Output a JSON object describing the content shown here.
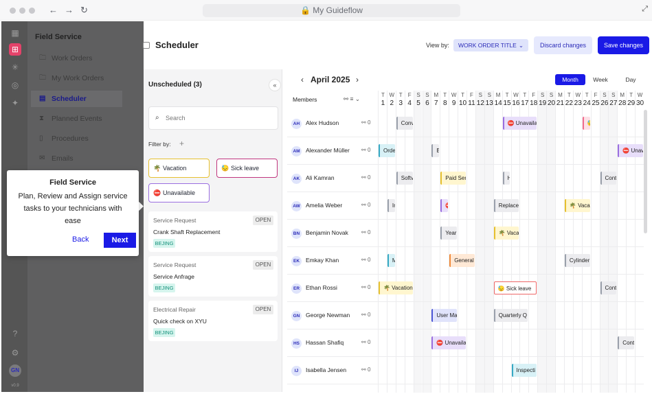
{
  "browser": {
    "url": "My Guideflow"
  },
  "rail": {
    "user": "GN",
    "version": "v0.9"
  },
  "sidebar": {
    "title": "Field Service",
    "items": [
      {
        "label": "Work Orders",
        "icon": "folder-icon"
      },
      {
        "label": "My Work Orders",
        "icon": "folder-user-icon"
      },
      {
        "label": "Scheduler",
        "icon": "calendar-icon"
      },
      {
        "label": "Planned Events",
        "icon": "hourglass-icon"
      },
      {
        "label": "Procedures",
        "icon": "document-icon"
      },
      {
        "label": "Emails",
        "icon": "mail-icon"
      }
    ]
  },
  "header": {
    "title": "Scheduler",
    "view_by_label": "View by:",
    "view_by_value": "WORK ORDER TITLE",
    "discard_label": "Discard changes",
    "save_label": "Save changes"
  },
  "unscheduled": {
    "title": "Unscheduled (3)",
    "search_placeholder": "Search",
    "filter_label": "Filter by:",
    "chips": [
      "Vacation",
      "Sick leave",
      "Unavailable"
    ],
    "cards": [
      {
        "type": "Service Request",
        "name": "Crank Shaft Replacement",
        "tag": "BEJING",
        "status": "OPEN"
      },
      {
        "type": "Service Request",
        "name": "Service Anfrage",
        "tag": "BEJING",
        "status": "OPEN"
      },
      {
        "type": "Electrical Repair",
        "name": "Quick check on XYU",
        "tag": "BEJING",
        "status": "OPEN"
      }
    ]
  },
  "calendar": {
    "month": "April 2025",
    "views": [
      "Month",
      "Week",
      "Day"
    ],
    "members_label": "Members",
    "day_letters": [
      "T",
      "W",
      "T",
      "F",
      "S",
      "S",
      "M",
      "T",
      "W",
      "T",
      "F",
      "S",
      "S",
      "M",
      "T",
      "W",
      "T",
      "F",
      "S",
      "S",
      "M",
      "T",
      "W",
      "T",
      "F",
      "S",
      "S",
      "M",
      "T",
      "W"
    ],
    "day_numbers": [
      "1",
      "2",
      "3",
      "4",
      "5",
      "6",
      "7",
      "8",
      "9",
      "10",
      "11",
      "12",
      "13",
      "14",
      "15",
      "16",
      "17",
      "18",
      "19",
      "20",
      "21",
      "22",
      "23",
      "24",
      "25",
      "26",
      "27",
      "28",
      "29",
      "30"
    ],
    "members": [
      {
        "initials": "AH",
        "name": "Alex Hudson",
        "count": "0"
      },
      {
        "initials": "AM",
        "name": "Alexander Müller",
        "count": "0"
      },
      {
        "initials": "AK",
        "name": "Ali Kamran",
        "count": "0"
      },
      {
        "initials": "AW",
        "name": "Amelia Weber",
        "count": "0"
      },
      {
        "initials": "BN",
        "name": "Benjamin Novak",
        "count": "0"
      },
      {
        "initials": "EK",
        "name": "Emkay Khan",
        "count": "0"
      },
      {
        "initials": "ER",
        "name": "Ethan Rossi",
        "count": "0"
      },
      {
        "initials": "GN",
        "name": "George Newman",
        "count": "0"
      },
      {
        "initials": "HS",
        "name": "Hassan Shafiq",
        "count": "0"
      },
      {
        "initials": "IJ",
        "name": "Isabella Jensen",
        "count": "0"
      }
    ],
    "events": [
      {
        "row": 0,
        "start": 2,
        "span": 2,
        "label": "Conv",
        "color": "gray"
      },
      {
        "row": 0,
        "start": 14,
        "span": 4,
        "label": "⛔ Unavailab",
        "color": "purple"
      },
      {
        "row": 0,
        "start": 23,
        "span": 1,
        "label": "😓",
        "color": "pink"
      },
      {
        "row": 1,
        "start": 0,
        "span": 2,
        "label": "Orde",
        "color": "blue"
      },
      {
        "row": 1,
        "start": 6,
        "span": 1,
        "label": "B",
        "color": "gray"
      },
      {
        "row": 1,
        "start": 27,
        "span": 3,
        "label": "⛔ Unava",
        "color": "purple"
      },
      {
        "row": 2,
        "start": 2,
        "span": 2,
        "label": "Softv",
        "color": "gray"
      },
      {
        "row": 2,
        "start": 7,
        "span": 3,
        "label": "Paid Ser",
        "color": "yellow"
      },
      {
        "row": 2,
        "start": 14,
        "span": 1,
        "label": "H",
        "color": "gray"
      },
      {
        "row": 2,
        "start": 25,
        "span": 2,
        "label": "Cont",
        "color": "gray"
      },
      {
        "row": 3,
        "start": 1,
        "span": 1,
        "label": "Ir",
        "color": "gray"
      },
      {
        "row": 3,
        "start": 7,
        "span": 1,
        "label": "⛔",
        "color": "purple"
      },
      {
        "row": 3,
        "start": 13,
        "span": 3,
        "label": "Replace",
        "color": "gray"
      },
      {
        "row": 3,
        "start": 21,
        "span": 3,
        "label": "🌴 Vacat",
        "color": "yellow"
      },
      {
        "row": 4,
        "start": 7,
        "span": 2,
        "label": "Yearl",
        "color": "gray"
      },
      {
        "row": 4,
        "start": 13,
        "span": 3,
        "label": "🌴 Vacat",
        "color": "yellow"
      },
      {
        "row": 5,
        "start": 1,
        "span": 1,
        "label": "M",
        "color": "blue"
      },
      {
        "row": 5,
        "start": 8,
        "span": 3,
        "label": "General",
        "color": "orange"
      },
      {
        "row": 5,
        "start": 21,
        "span": 3,
        "label": "Cylinder",
        "color": "gray"
      },
      {
        "row": 6,
        "start": 0,
        "span": 4,
        "label": "🌴 Vacation",
        "color": "yellow"
      },
      {
        "row": 6,
        "start": 13,
        "span": 5,
        "label": "😓 Sick leave",
        "color": "red"
      },
      {
        "row": 6,
        "start": 25,
        "span": 2,
        "label": "Cont",
        "color": "gray"
      },
      {
        "row": 7,
        "start": 6,
        "span": 3,
        "label": "User Ma",
        "color": "indigo"
      },
      {
        "row": 7,
        "start": 13,
        "span": 4,
        "label": "Quarterly Q",
        "color": "gray"
      },
      {
        "row": 8,
        "start": 6,
        "span": 4,
        "label": "⛔ Unavailat",
        "color": "purple"
      },
      {
        "row": 8,
        "start": 27,
        "span": 2,
        "label": "Cont",
        "color": "gray"
      },
      {
        "row": 9,
        "start": 15,
        "span": 3,
        "label": "Inspecti",
        "color": "blue"
      }
    ]
  },
  "tooltip": {
    "title": "Field Service",
    "body": "Plan, Review and Assign service tasks to your technicians with ease",
    "back_label": "Back",
    "next_label": "Next"
  }
}
